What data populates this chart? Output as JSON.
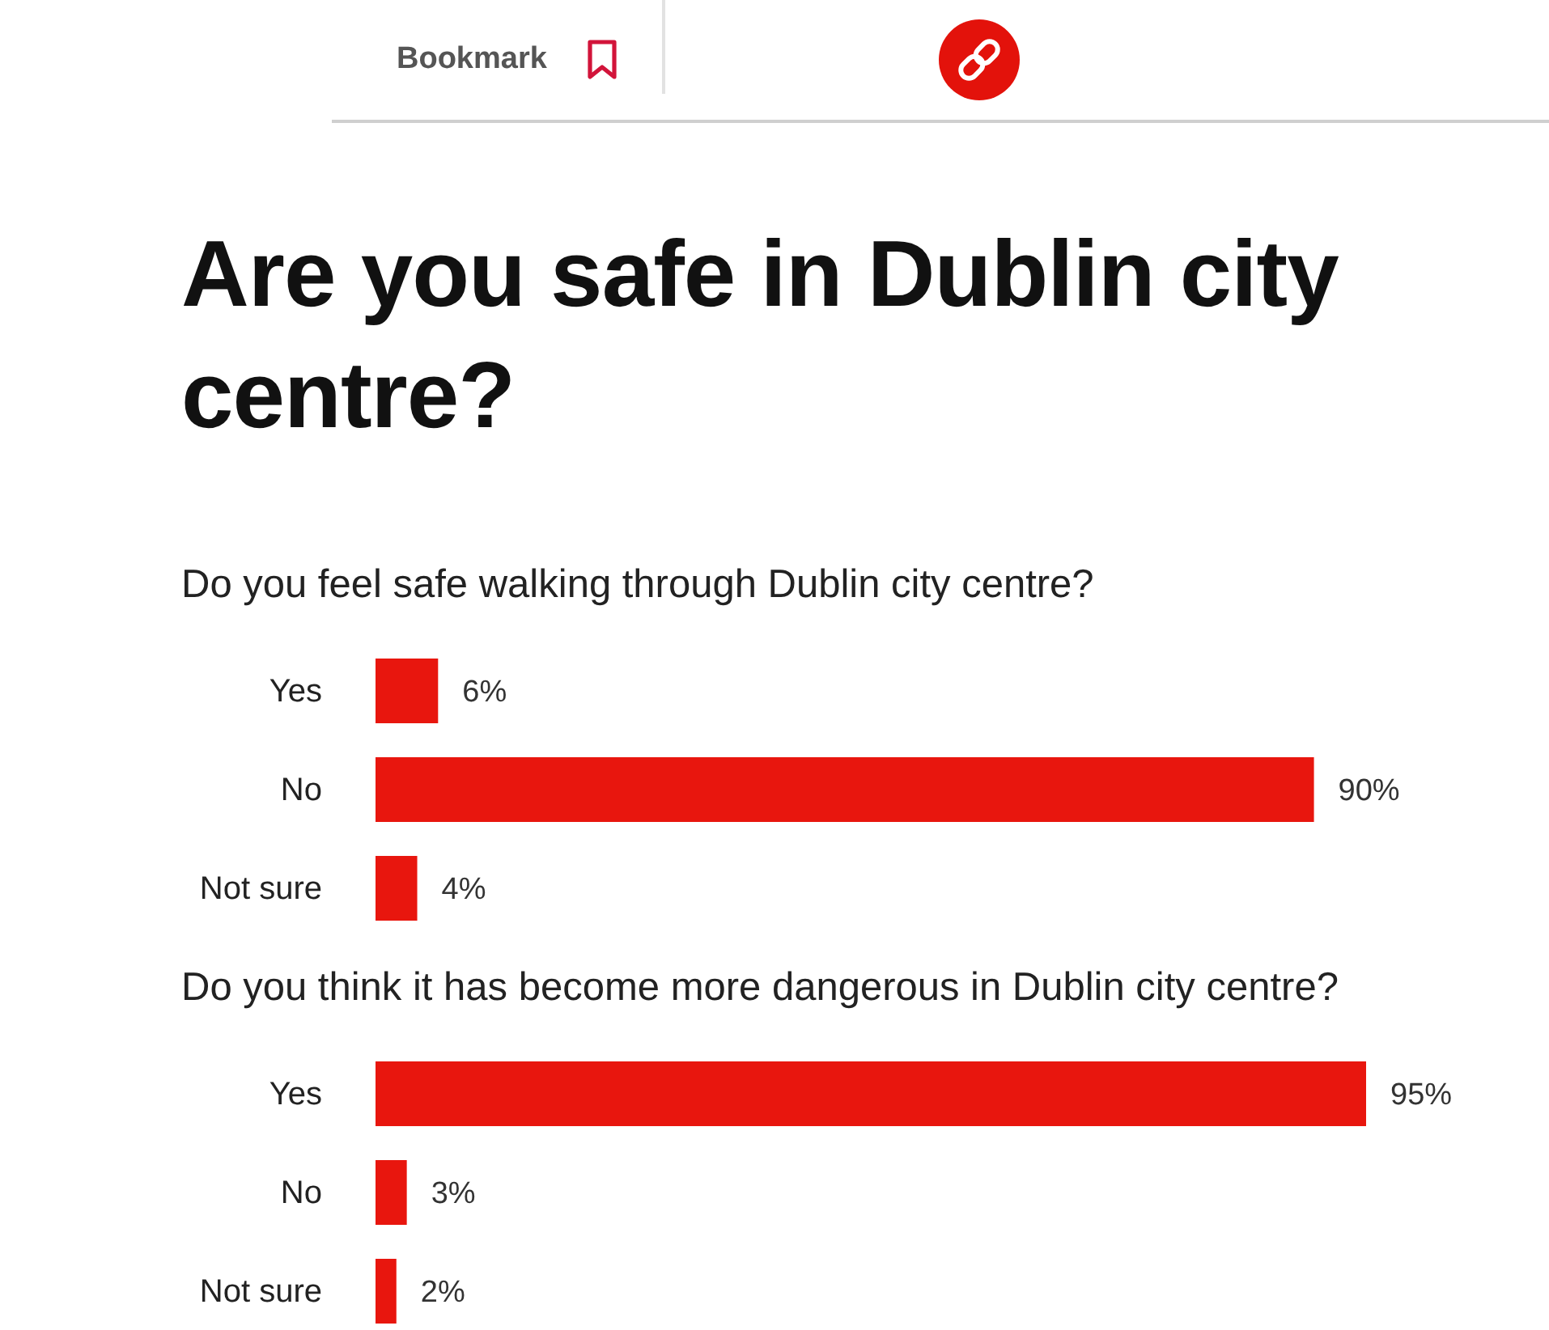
{
  "chart_data": [
    {
      "type": "other",
      "title": "Are you safe in Dublin city centre?",
      "annotations": [
        "Bookmark"
      ]
    },
    {
      "type": "bar",
      "orientation": "horizontal",
      "title": "Do you feel safe walking through Dublin city centre?",
      "categories": [
        "Yes",
        "No",
        "Not sure"
      ],
      "values": [
        6,
        90,
        4
      ],
      "value_labels": [
        "6%",
        "90%",
        "4%"
      ],
      "color": "#e8160e"
    },
    {
      "type": "bar",
      "orientation": "horizontal",
      "title": "Do you think it has become more dangerous in Dublin city centre?",
      "categories": [
        "Yes",
        "No",
        "Not sure"
      ],
      "values": [
        95,
        3,
        2
      ],
      "value_labels": [
        "95%",
        "3%",
        "2%"
      ],
      "color": "#e8160e"
    }
  ]
}
